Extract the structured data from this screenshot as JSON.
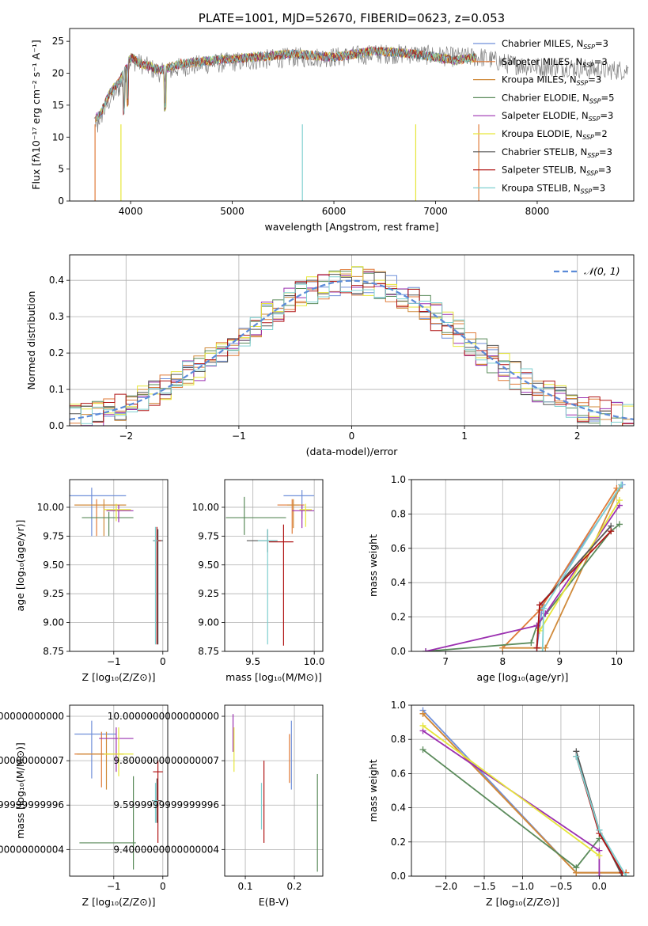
{
  "colors": {
    "Chabrier MILES": "#6f8fd9",
    "Salpeter MILES": "#e07b39",
    "Kroupa MILES": "#d08a3a",
    "Chabrier ELODIE": "#5a8a5a",
    "Salpeter ELODIE": "#9b30b0",
    "Kroupa ELODIE": "#e6e63a",
    "Chabrier STELIB": "#555555",
    "Salpeter STELIB": "#b01515",
    "Kroupa STELIB": "#7fd0d0",
    "normal": "#5b8bd8"
  },
  "chart_data": [
    {
      "id": "spectrum",
      "type": "line",
      "title": "PLATE=1001, MJD=52670, FIBERID=0623, z=0.053",
      "xlabel": "wavelength [Angstrom, rest frame]",
      "ylabel": "Flux [fλ10⁻¹⁷ erg cm⁻² s⁻¹ A⁻¹]",
      "xlim": [
        3400,
        8950
      ],
      "ylim": [
        0,
        27
      ],
      "xticks": [
        4000,
        5000,
        6000,
        7000,
        8000
      ],
      "yticks": [
        0,
        5,
        10,
        15,
        20,
        25
      ],
      "grid": false,
      "legend_position": "right",
      "legend": [
        {
          "label": "Chabrier MILES, N",
          "sub": "SSP",
          "val": "=3"
        },
        {
          "label": "Salpeter MILES, N",
          "sub": "SSP",
          "val": "=3"
        },
        {
          "label": "Kroupa MILES, N",
          "sub": "SSP",
          "val": "=3"
        },
        {
          "label": "Chabrier ELODIE, N",
          "sub": "SSP",
          "val": "=5"
        },
        {
          "label": "Salpeter ELODIE, N",
          "sub": "SSP",
          "val": "=3"
        },
        {
          "label": "Kroupa ELODIE, N",
          "sub": "SSP",
          "val": "=2"
        },
        {
          "label": "Chabrier STELIB, N",
          "sub": "SSP",
          "val": "=3"
        },
        {
          "label": "Salpeter STELIB, N",
          "sub": "SSP",
          "val": "=3"
        },
        {
          "label": "Kroupa STELIB, N",
          "sub": "SSP",
          "val": "=3"
        }
      ],
      "data_curve": {
        "x": [
          3640,
          3700,
          3800,
          3900,
          4000,
          4100,
          4300,
          4500,
          4800,
          5200,
          5600,
          6000,
          6400,
          6800,
          7200,
          7450,
          7700,
          8000,
          8300,
          8600,
          8900
        ],
        "y": [
          12.5,
          13,
          16,
          18,
          22,
          21.5,
          20,
          21,
          21.5,
          22,
          22.5,
          22.5,
          23,
          23,
          22.5,
          22.5,
          21.5,
          21,
          21,
          20.5,
          20.5
        ]
      },
      "model_curve": {
        "x": [
          3650,
          3700,
          3800,
          3900,
          4000,
          4100,
          4300,
          4500,
          4800,
          5200,
          5600,
          6000,
          6400,
          6800,
          7200,
          7400
        ],
        "y": [
          13,
          13.5,
          17,
          19,
          22.5,
          21.5,
          20.5,
          21.5,
          22,
          22.5,
          23,
          22.5,
          23.5,
          23,
          22,
          22.5
        ]
      }
    },
    {
      "id": "residuals",
      "type": "histogram",
      "xlabel": "(data-model)/error",
      "ylabel": "Normed distribution",
      "xlim": [
        -2.5,
        2.5
      ],
      "ylim": [
        0,
        0.47
      ],
      "xticks": [
        -2,
        -1,
        0,
        1,
        2
      ],
      "yticks": [
        0.0,
        0.1,
        0.2,
        0.3,
        0.4
      ],
      "grid": true,
      "legend_position": "top-right",
      "legend": [
        {
          "label": "𝒩(0, 1)"
        }
      ],
      "bin_width": 0.1
    },
    {
      "id": "age_vs_Z",
      "type": "errorbar",
      "xlabel": "Z [log₁₀(Z/Z⊙)]",
      "ylabel": "age  [log₁₀(age/yr)]",
      "xlim": [
        -1.9,
        0.1
      ],
      "ylim": [
        8.75,
        10.24
      ],
      "xticks": [
        -1,
        0
      ],
      "yticks": [
        8.75,
        9.0,
        9.25,
        9.5,
        9.75,
        10.0
      ],
      "points": [
        {
          "s": "Chabrier MILES",
          "x": -1.45,
          "y": 10.1,
          "xe": [
            0.45,
            0.7
          ],
          "ye": [
            0.35,
            0.07
          ]
        },
        {
          "s": "Salpeter MILES",
          "x": -1.35,
          "y": 10.02,
          "xe": [
            0.45,
            0.6
          ],
          "ye": [
            0.27,
            0.05
          ]
        },
        {
          "s": "Kroupa MILES",
          "x": -1.2,
          "y": 10.02,
          "xe": [
            0.6,
            0.45
          ],
          "ye": [
            0.27,
            0.05
          ]
        },
        {
          "s": "Chabrier ELODIE",
          "x": -1.1,
          "y": 9.91,
          "xe": [
            0.55,
            0.5
          ],
          "ye": [
            0.16,
            0.05
          ]
        },
        {
          "s": "Salpeter ELODIE",
          "x": -0.9,
          "y": 9.97,
          "xe": [
            0.25,
            0.3
          ],
          "ye": [
            0.1,
            0.05
          ]
        },
        {
          "s": "Kroupa ELODIE",
          "x": -0.95,
          "y": 9.98,
          "xe": [
            0.25,
            0.3
          ],
          "ye": [
            0.1,
            0.05
          ]
        },
        {
          "s": "Chabrier STELIB",
          "x": -0.1,
          "y": 9.71,
          "xe": [
            0.1,
            0.1
          ],
          "ye": [
            0.9,
            0.1
          ]
        },
        {
          "s": "Salpeter STELIB",
          "x": -0.12,
          "y": 9.71,
          "xe": [
            0.08,
            0.08
          ],
          "ye": [
            0.9,
            0.12
          ]
        },
        {
          "s": "Kroupa STELIB",
          "x": -0.15,
          "y": 9.71,
          "xe": [
            0.05,
            0.05
          ],
          "ye": [
            0.9,
            0.12
          ]
        }
      ]
    },
    {
      "id": "age_vs_mass",
      "type": "errorbar",
      "xlabel": "mass [log₁₀(M/M⊙)]",
      "ylabel": "",
      "xlim": [
        9.27,
        10.07
      ],
      "ylim": [
        8.75,
        10.24
      ],
      "xticks": [
        9.5,
        10.0
      ],
      "yticks": [
        8.75,
        9.0,
        9.25,
        9.5,
        9.75,
        10.0
      ],
      "points": [
        {
          "s": "Chabrier MILES",
          "x": 9.9,
          "y": 10.1,
          "xe": [
            0.15,
            0.1
          ],
          "ye": [
            0.2,
            0.05
          ]
        },
        {
          "s": "Salpeter MILES",
          "x": 9.82,
          "y": 10.02,
          "xe": [
            0.12,
            0.1
          ],
          "ye": [
            0.25,
            0.05
          ]
        },
        {
          "s": "Kroupa MILES",
          "x": 9.83,
          "y": 10.02,
          "xe": [
            0.05,
            0.05
          ],
          "ye": [
            0.2,
            0.05
          ]
        },
        {
          "s": "Chabrier ELODIE",
          "x": 9.43,
          "y": 9.91,
          "xe": [
            0.15,
            0.34
          ],
          "ye": [
            0.15,
            0.18
          ]
        },
        {
          "s": "Salpeter ELODIE",
          "x": 9.9,
          "y": 9.97,
          "xe": [
            0.08,
            0.1
          ],
          "ye": [
            0.15,
            0.05
          ]
        },
        {
          "s": "Kroupa ELODIE",
          "x": 9.93,
          "y": 9.98,
          "xe": [
            0.05,
            0.05
          ],
          "ye": [
            0.15,
            0.05
          ]
        },
        {
          "s": "Chabrier STELIB",
          "x": 9.62,
          "y": 9.71,
          "xe": [
            0.17,
            0.08
          ],
          "ye": [
            0.1,
            0.1
          ]
        },
        {
          "s": "Salpeter STELIB",
          "x": 9.75,
          "y": 9.7,
          "xe": [
            0.12,
            0.08
          ],
          "ye": [
            0.9,
            0.15
          ]
        },
        {
          "s": "Kroupa STELIB",
          "x": 9.62,
          "y": 9.71,
          "xe": [
            0.08,
            0.08
          ],
          "ye": [
            0.9,
            0.1
          ]
        }
      ]
    },
    {
      "id": "weight_vs_age",
      "type": "line",
      "xlabel": "age  [log₁₀(age/yr)]",
      "ylabel": "mass weight",
      "xlim": [
        6.4,
        10.3
      ],
      "ylim": [
        0.0,
        1.0
      ],
      "xticks": [
        7,
        8,
        9,
        10
      ],
      "yticks": [
        0.0,
        0.2,
        0.4,
        0.6,
        0.8,
        1.0
      ],
      "grid": true,
      "series": [
        {
          "name": "Chabrier MILES",
          "x": [
            8.6,
            8.7,
            10.1
          ],
          "y": [
            0.02,
            0.27,
            0.97
          ]
        },
        {
          "name": "Salpeter MILES",
          "x": [
            8.0,
            8.65,
            10.0
          ],
          "y": [
            0.02,
            0.24,
            0.95
          ]
        },
        {
          "name": "Kroupa MILES",
          "x": [
            8.0,
            8.75,
            10.05
          ],
          "y": [
            0.02,
            0.02,
            0.95
          ]
        },
        {
          "name": "Chabrier ELODIE",
          "x": [
            6.65,
            8.5,
            8.6,
            9.9,
            10.05
          ],
          "y": [
            0.0,
            0.05,
            0.15,
            0.7,
            0.74
          ]
        },
        {
          "name": "Salpeter ELODIE",
          "x": [
            6.65,
            8.6,
            8.75,
            10.05
          ],
          "y": [
            0.0,
            0.15,
            0.22,
            0.85
          ]
        },
        {
          "name": "Kroupa ELODIE",
          "x": [
            8.65,
            10.05
          ],
          "y": [
            0.12,
            0.88
          ]
        },
        {
          "name": "Chabrier STELIB",
          "x": [
            8.6,
            8.65,
            9.9
          ],
          "y": [
            0.02,
            0.27,
            0.73
          ]
        },
        {
          "name": "Salpeter STELIB",
          "x": [
            8.6,
            8.65,
            9.9
          ],
          "y": [
            0.02,
            0.27,
            0.7
          ]
        },
        {
          "name": "Kroupa STELIB",
          "x": [
            8.7,
            8.72,
            10.08
          ],
          "y": [
            0.0,
            0.25,
            0.97
          ]
        }
      ]
    },
    {
      "id": "mass_vs_Z",
      "type": "errorbar",
      "xlabel": "Z [log₁₀(Z/Z⊙)]",
      "ylabel": "mass [log₁₀(M/M⊙)]",
      "xlim": [
        -1.9,
        0.1
      ],
      "ylim": [
        9.28,
        10.05
      ],
      "xticks": [
        -1,
        0
      ],
      "yticks": [
        9.4,
        9.6,
        9.8,
        10.0
      ],
      "points": [
        {
          "s": "Chabrier MILES",
          "x": -1.45,
          "y": 9.92,
          "xe": [
            0.35,
            0.5
          ],
          "ye": [
            0.2,
            0.06
          ]
        },
        {
          "s": "Salpeter MILES",
          "x": -1.25,
          "y": 9.83,
          "xe": [
            0.55,
            0.45
          ],
          "ye": [
            0.15,
            0.1
          ]
        },
        {
          "s": "Kroupa MILES",
          "x": -1.15,
          "y": 9.83,
          "xe": [
            0.6,
            0.35
          ],
          "ye": [
            0.16,
            0.1
          ]
        },
        {
          "s": "Chabrier ELODIE",
          "x": -0.6,
          "y": 9.43,
          "xe": [
            1.1,
            0.05
          ],
          "ye": [
            0.12,
            0.3
          ]
        },
        {
          "s": "Salpeter ELODIE",
          "x": -0.95,
          "y": 9.9,
          "xe": [
            0.35,
            0.35
          ],
          "ye": [
            0.15,
            0.05
          ]
        },
        {
          "s": "Kroupa ELODIE",
          "x": -0.9,
          "y": 9.83,
          "xe": [
            0.3,
            0.3
          ],
          "ye": [
            0.1,
            0.12
          ]
        },
        {
          "s": "Chabrier STELIB",
          "x": -0.12,
          "y": 9.62,
          "xe": [
            0.1,
            0.1
          ],
          "ye": [
            0.1,
            0.1
          ]
        },
        {
          "s": "Salpeter STELIB",
          "x": -0.1,
          "y": 9.75,
          "xe": [
            0.1,
            0.1
          ],
          "ye": [
            0.32,
            0.05
          ]
        },
        {
          "s": "Kroupa STELIB",
          "x": -0.15,
          "y": 9.62,
          "xe": [
            0.05,
            0.05
          ],
          "ye": [
            0.1,
            0.08
          ]
        }
      ]
    },
    {
      "id": "mass_vs_EBV",
      "type": "errorbar",
      "xlabel": "E(B-V)",
      "ylabel": "",
      "xlim": [
        0.058,
        0.258
      ],
      "ylim": [
        9.28,
        10.05
      ],
      "xticks": [
        0.1,
        0.2
      ],
      "yticks": [
        9.4,
        9.6,
        9.8,
        10.0
      ],
      "points": [
        {
          "s": "Salpeter ELODIE",
          "x": 0.075,
          "y": 9.92,
          "xe": [
            0,
            0
          ],
          "ye": [
            0.08,
            0.09
          ]
        },
        {
          "s": "Kroupa ELODIE",
          "x": 0.077,
          "y": 9.85,
          "xe": [
            0,
            0
          ],
          "ye": [
            0.1,
            0.1
          ]
        },
        {
          "s": "Kroupa STELIB",
          "x": 0.133,
          "y": 9.62,
          "xe": [
            0,
            0
          ],
          "ye": [
            0.13,
            0.08
          ]
        },
        {
          "s": "Salpeter STELIB",
          "x": 0.138,
          "y": 9.65,
          "xe": [
            0,
            0
          ],
          "ye": [
            0.22,
            0.15
          ]
        },
        {
          "s": "Chabrier MILES",
          "x": 0.194,
          "y": 9.85,
          "xe": [
            0,
            0
          ],
          "ye": [
            0.18,
            0.13
          ]
        },
        {
          "s": "Salpeter MILES",
          "x": 0.19,
          "y": 9.82,
          "xe": [
            0,
            0
          ],
          "ye": [
            0.12,
            0.1
          ]
        },
        {
          "s": "Chabrier ELODIE",
          "x": 0.247,
          "y": 9.52,
          "xe": [
            0,
            0
          ],
          "ye": [
            0.22,
            0.22
          ]
        }
      ]
    },
    {
      "id": "weight_vs_Z",
      "type": "line",
      "xlabel": "Z [log₁₀(Z/Z⊙)]",
      "ylabel": "mass weight",
      "xlim": [
        -2.45,
        0.45
      ],
      "ylim": [
        0.0,
        1.0
      ],
      "xticks": [
        -2.0,
        -1.5,
        -1.0,
        -0.5,
        0.0
      ],
      "yticks": [
        0.0,
        0.2,
        0.4,
        0.6,
        0.8,
        1.0
      ],
      "grid": true,
      "series": [
        {
          "name": "Chabrier MILES",
          "x": [
            -2.3,
            -0.3,
            0.35
          ],
          "y": [
            0.97,
            0.02,
            0.02
          ]
        },
        {
          "name": "Salpeter MILES",
          "x": [
            -2.3,
            -0.3,
            0.35
          ],
          "y": [
            0.95,
            0.02,
            0.02
          ]
        },
        {
          "name": "Kroupa MILES",
          "x": [
            -2.3,
            -0.3,
            0.3
          ],
          "y": [
            0.95,
            0.02,
            0.02
          ]
        },
        {
          "name": "Chabrier ELODIE",
          "x": [
            -2.3,
            -0.3,
            0.0
          ],
          "y": [
            0.74,
            0.05,
            0.22
          ]
        },
        {
          "name": "Salpeter ELODIE",
          "x": [
            -2.3,
            0.0,
            0.0
          ],
          "y": [
            0.85,
            0.15,
            0.0
          ]
        },
        {
          "name": "Kroupa ELODIE",
          "x": [
            -2.3,
            0.0
          ],
          "y": [
            0.88,
            0.12
          ]
        },
        {
          "name": "Chabrier STELIB",
          "x": [
            -0.3,
            0.0,
            0.3
          ],
          "y": [
            0.73,
            0.27,
            0.0
          ]
        },
        {
          "name": "Salpeter STELIB",
          "x": [
            -0.3,
            0.0,
            0.3
          ],
          "y": [
            0.7,
            0.25,
            0.02
          ]
        },
        {
          "name": "Kroupa STELIB",
          "x": [
            -0.3,
            0.0,
            0.35
          ],
          "y": [
            0.7,
            0.27,
            0.0
          ]
        }
      ]
    }
  ]
}
